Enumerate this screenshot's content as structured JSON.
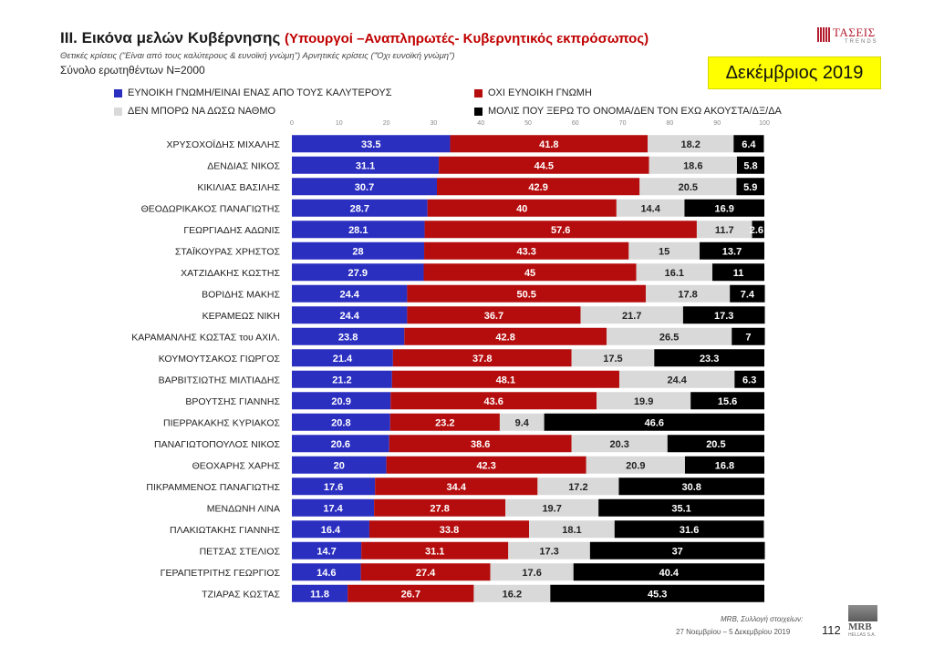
{
  "header": {
    "title_main": "III. Εικόνα μελών Κυβέρνησης",
    "title_highlight": "(Υπουργοί –Αναπληρωτές- Κυβερνητικός εκπρόσωπος)",
    "subtitle_note": "Θετικές κρίσεις (\"Είναι από τους καλύτερους & ευνοϊκή γνώμη\")  Αρνητικές κρίσεις (\"Όχι ευνοϊκή γνώμη\")",
    "sample": "Σύνολο ερωτηθέντων Ν=2000",
    "date_badge": "Δεκέμβριος 2019",
    "logo_name": "ΤΑΣΕΙΣ",
    "logo_sub": "TRENDS"
  },
  "footer": {
    "source": "MRB, Συλλογή στοιχείων:",
    "period": "27 Νοεμβρίου – 5 Δεκεμβρίου 2019",
    "page": "112",
    "logo_name": "MRB",
    "logo_sub": "HELLAS S.A."
  },
  "chart_data": {
    "type": "bar",
    "orientation": "horizontal",
    "stacked": true,
    "xlim": [
      0,
      100
    ],
    "x_ticks": [
      0,
      10,
      20,
      30,
      40,
      50,
      60,
      70,
      80,
      90,
      100
    ],
    "grid": false,
    "legend_position": "top",
    "categories": [
      "ΧΡΥΣΟΧΟΪΔΗΣ ΜΙΧΑΛΗΣ",
      "ΔΕΝΔΙΑΣ ΝΙΚΟΣ",
      "ΚΙΚΙΛΙΑΣ ΒΑΣΙΛΗΣ",
      "ΘΕΟΔΩΡΙΚΑΚΟΣ ΠΑΝΑΓΙΩΤΗΣ",
      "ΓΕΩΡΓΙΑΔΗΣ ΑΔΩΝΙΣ",
      "ΣΤΑΪΚΟΥΡΑΣ ΧΡΗΣΤΟΣ",
      "ΧΑΤΖΙΔΑΚΗΣ ΚΩΣΤΗΣ",
      "ΒΟΡΙΔΗΣ ΜΑΚΗΣ",
      "ΚΕΡΑΜΕΩΣ ΝΙΚΗ",
      "ΚΑΡΑΜΑΝΛΗΣ ΚΩΣΤΑΣ του ΑΧΙΛ.",
      "ΚΟΥΜΟΥΤΣΑΚΟΣ ΓΙΩΡΓΟΣ",
      "ΒΑΡΒΙΤΣΙΩΤΗΣ ΜΙΛΤΙΑΔΗΣ",
      "ΒΡΟΥΤΣΗΣ ΓΙΑΝΝΗΣ",
      "ΠΙΕΡΡΑΚΑΚΗΣ ΚΥΡΙΑΚΟΣ",
      "ΠΑΝΑΓΙΩΤΟΠΟΥΛΟΣ ΝΙΚΟΣ",
      "ΘΕΟΧΑΡΗΣ ΧΑΡΗΣ",
      "ΠΙΚΡΑΜΜΕΝΟΣ ΠΑΝΑΓΙΩΤΗΣ",
      "ΜΕΝΔΩΝΗ ΛΙΝΑ",
      "ΠΛΑΚΙΩΤΑΚΗΣ ΓΙΑΝΝΗΣ",
      "ΠΕΤΣΑΣ ΣΤΕΛΙΟΣ",
      "ΓΕΡΑΠΕΤΡΙΤΗΣ ΓΕΩΡΓΙΟΣ",
      "ΤΖΙΑΡΑΣ ΚΩΣΤΑΣ"
    ],
    "series": [
      {
        "name": "ΕΥΝΟΙΚΗ ΓΝΩΜΗ/ΕΙΝΑΙ ΕΝΑΣ ΑΠΟ ΤΟΥΣ ΚΑΛΥΤΕΡΟΥΣ",
        "color": "#2b2fc0",
        "values": [
          33.5,
          31.1,
          30.7,
          28.7,
          28.1,
          28,
          27.9,
          24.4,
          24.4,
          23.8,
          21.4,
          21.2,
          20.9,
          20.8,
          20.6,
          20,
          17.6,
          17.4,
          16.4,
          14.7,
          14.6,
          11.8
        ]
      },
      {
        "name": "ΟΧΙ ΕΥΝΟΙΚΗ ΓΝΩΜΗ",
        "color": "#b50d0d",
        "values": [
          41.8,
          44.5,
          42.9,
          40,
          57.6,
          43.3,
          45,
          50.5,
          36.7,
          42.8,
          37.8,
          48.1,
          43.6,
          23.2,
          38.6,
          42.3,
          34.4,
          27.8,
          33.8,
          31.1,
          27.4,
          26.7
        ]
      },
      {
        "name": "ΔΕΝ ΜΠΟΡΩ ΝΑ ΔΩΣΩ ΝΑΘΜΟ",
        "color": "#d9d9d9",
        "values": [
          18.2,
          18.6,
          20.5,
          14.4,
          11.7,
          15,
          16.1,
          17.8,
          21.7,
          26.5,
          17.5,
          24.4,
          19.9,
          9.4,
          20.3,
          20.9,
          17.2,
          19.7,
          18.1,
          17.3,
          17.6,
          16.2
        ]
      },
      {
        "name": "ΜΟΛΙΣ ΠΟΥ ΞΕΡΩ ΤΟ ΟΝΟΜΑ/ΔΕΝ ΤΟΝ ΕΧΩ ΑΚΟΥΣΤΑ/ΔΞ/ΔΑ",
        "color": "#000000",
        "values": [
          6.4,
          5.8,
          5.9,
          16.9,
          2.6,
          13.7,
          11,
          7.4,
          17.3,
          7,
          23.3,
          6.3,
          15.6,
          46.6,
          20.5,
          16.8,
          30.8,
          35.1,
          31.6,
          37,
          40.4,
          45.3
        ]
      }
    ],
    "label_colors": [
      "#ffffff",
      "#ffffff",
      "#222222",
      "#ffffff"
    ]
  }
}
